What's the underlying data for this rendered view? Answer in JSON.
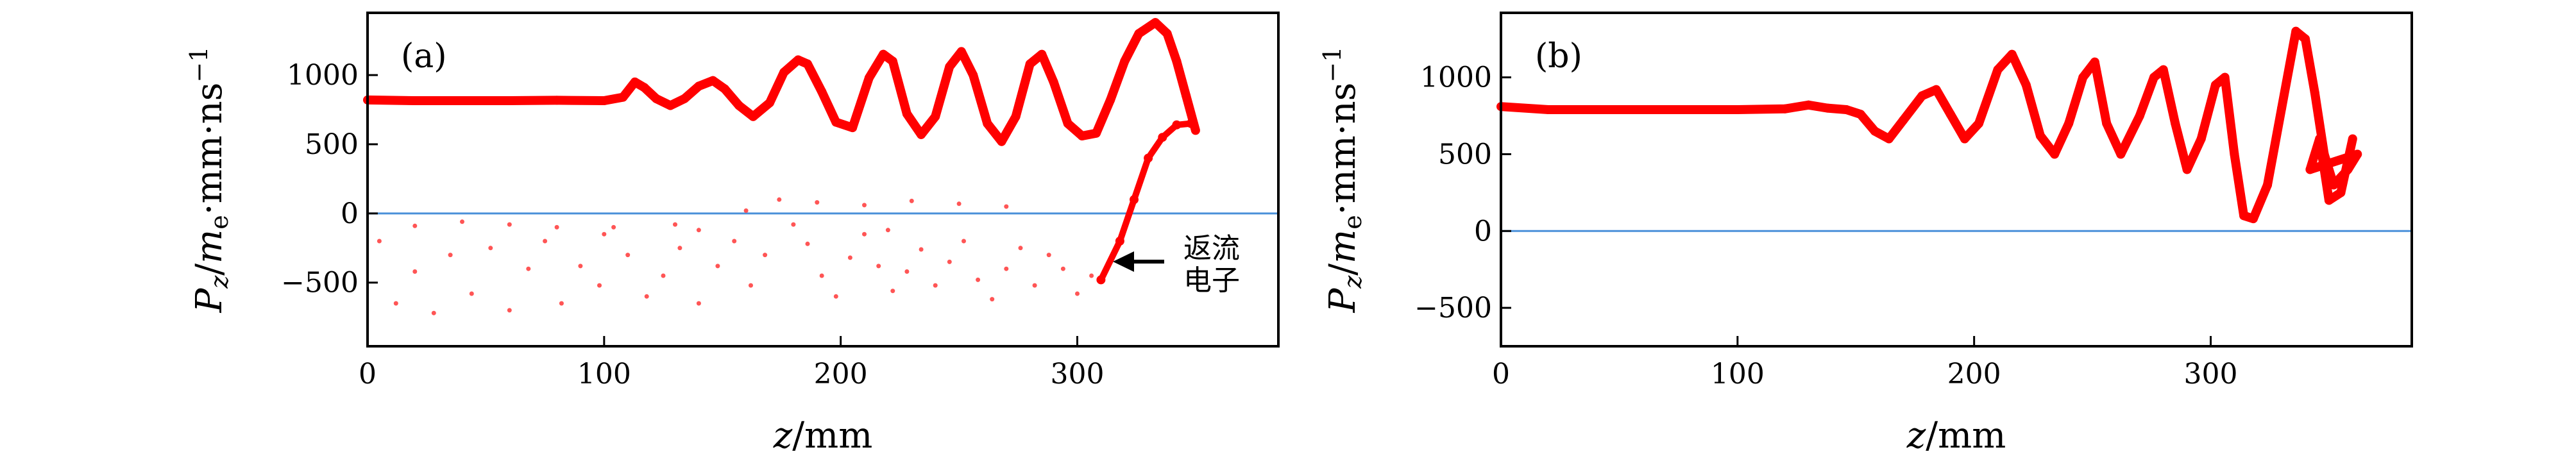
{
  "chart_data": [
    {
      "panel_label": "(a)",
      "type": "scatter",
      "xlabel": "z/mm",
      "ylabel": "P_z/m_e·mm·ns^-1",
      "xlim": [
        0,
        385
      ],
      "ylim": [
        -960,
        1450
      ],
      "xticks": [
        0,
        100,
        200,
        300
      ],
      "yticks": [
        -500,
        0,
        500,
        1000
      ],
      "ytick_labels": [
        "−500",
        "0",
        "500",
        "1000"
      ],
      "grid": false,
      "reference_line": {
        "y": 0,
        "color": "#4a90d9"
      },
      "series": [
        {
          "color": "#ff0000",
          "points": [
            [
              0,
              820
            ],
            [
              20,
              815
            ],
            [
              40,
              815
            ],
            [
              60,
              815
            ],
            [
              80,
              818
            ],
            [
              100,
              815
            ],
            [
              108,
              840
            ],
            [
              113,
              950
            ],
            [
              117,
              910
            ],
            [
              122,
              830
            ],
            [
              128,
              780
            ],
            [
              134,
              830
            ],
            [
              140,
              920
            ],
            [
              146,
              960
            ],
            [
              151,
              900
            ],
            [
              157,
              780
            ],
            [
              163,
              700
            ],
            [
              170,
              800
            ],
            [
              176,
              1020
            ],
            [
              182,
              1110
            ],
            [
              186,
              1080
            ],
            [
              192,
              880
            ],
            [
              198,
              660
            ],
            [
              205,
              620
            ],
            [
              212,
              980
            ],
            [
              218,
              1150
            ],
            [
              222,
              1100
            ],
            [
              228,
              720
            ],
            [
              234,
              570
            ],
            [
              240,
              700
            ],
            [
              246,
              1060
            ],
            [
              251,
              1170
            ],
            [
              256,
              1000
            ],
            [
              262,
              650
            ],
            [
              268,
              520
            ],
            [
              274,
              700
            ],
            [
              280,
              1080
            ],
            [
              285,
              1150
            ],
            [
              290,
              950
            ],
            [
              296,
              650
            ],
            [
              302,
              560
            ],
            [
              308,
              580
            ],
            [
              314,
              820
            ],
            [
              320,
              1100
            ],
            [
              326,
              1300
            ],
            [
              333,
              1380
            ],
            [
              338,
              1300
            ],
            [
              342,
              1100
            ],
            [
              346,
              850
            ],
            [
              350,
              600
            ],
            [
              310,
              -480
            ],
            [
              318,
              -200
            ],
            [
              324,
              100
            ],
            [
              330,
              400
            ],
            [
              336,
              550
            ],
            [
              342,
              640
            ],
            [
              348,
              650
            ]
          ]
        },
        {
          "color": "#ff5555",
          "points": [
            [
              5,
              -200
            ],
            [
              12,
              -650
            ],
            [
              20,
              -420
            ],
            [
              28,
              -720
            ],
            [
              35,
              -300
            ],
            [
              44,
              -580
            ],
            [
              52,
              -250
            ],
            [
              60,
              -700
            ],
            [
              68,
              -400
            ],
            [
              75,
              -200
            ],
            [
              82,
              -650
            ],
            [
              90,
              -380
            ],
            [
              98,
              -520
            ],
            [
              104,
              -100
            ],
            [
              110,
              -300
            ],
            [
              118,
              -600
            ],
            [
              125,
              -450
            ],
            [
              132,
              -250
            ],
            [
              140,
              -650
            ],
            [
              148,
              -380
            ],
            [
              155,
              -200
            ],
            [
              162,
              -520
            ],
            [
              168,
              -300
            ],
            [
              174,
              100
            ],
            [
              180,
              -80
            ],
            [
              186,
              -220
            ],
            [
              192,
              -450
            ],
            [
              198,
              -600
            ],
            [
              204,
              -320
            ],
            [
              210,
              -150
            ],
            [
              216,
              -380
            ],
            [
              222,
              -560
            ],
            [
              228,
              -420
            ],
            [
              234,
              -260
            ],
            [
              240,
              -520
            ],
            [
              246,
              -350
            ],
            [
              252,
              -200
            ],
            [
              258,
              -480
            ],
            [
              264,
              -620
            ],
            [
              270,
              -400
            ],
            [
              276,
              -250
            ],
            [
              282,
              -520
            ],
            [
              288,
              -300
            ],
            [
              294,
              -400
            ],
            [
              300,
              -580
            ],
            [
              306,
              -450
            ],
            [
              190,
              80
            ],
            [
              210,
              60
            ],
            [
              230,
              90
            ],
            [
              250,
              70
            ],
            [
              270,
              50
            ],
            [
              160,
              20
            ],
            [
              130,
              -80
            ],
            [
              100,
              -150
            ],
            [
              80,
              -100
            ],
            [
              60,
              -80
            ],
            [
              40,
              -60
            ],
            [
              20,
              -90
            ],
            [
              140,
              -120
            ],
            [
              220,
              -120
            ]
          ]
        }
      ],
      "annotation": {
        "text_lines": [
          "返流",
          "电子"
        ],
        "arrow_to": [
          318,
          -350
        ]
      }
    },
    {
      "panel_label": "(b)",
      "type": "scatter",
      "xlabel": "z/mm",
      "ylabel": "P_z/m_e·mm·ns^-1",
      "xlim": [
        0,
        385
      ],
      "ylim": [
        -750,
        1420
      ],
      "xticks": [
        0,
        100,
        200,
        300
      ],
      "yticks": [
        -500,
        0,
        500,
        1000
      ],
      "ytick_labels": [
        "−500",
        "0",
        "500",
        "1000"
      ],
      "grid": false,
      "reference_line": {
        "y": 0,
        "color": "#4a90d9"
      },
      "series": [
        {
          "color": "#ff0000",
          "points": [
            [
              0,
              810
            ],
            [
              20,
              790
            ],
            [
              40,
              790
            ],
            [
              60,
              790
            ],
            [
              80,
              790
            ],
            [
              100,
              790
            ],
            [
              120,
              795
            ],
            [
              130,
              820
            ],
            [
              138,
              800
            ],
            [
              146,
              790
            ],
            [
              152,
              760
            ],
            [
              158,
              650
            ],
            [
              164,
              600
            ],
            [
              170,
              720
            ],
            [
              178,
              880
            ],
            [
              184,
              920
            ],
            [
              190,
              760
            ],
            [
              196,
              600
            ],
            [
              202,
              700
            ],
            [
              210,
              1050
            ],
            [
              216,
              1150
            ],
            [
              222,
              950
            ],
            [
              228,
              620
            ],
            [
              234,
              500
            ],
            [
              240,
              700
            ],
            [
              246,
              1000
            ],
            [
              251,
              1100
            ],
            [
              256,
              700
            ],
            [
              262,
              500
            ],
            [
              270,
              750
            ],
            [
              276,
              1000
            ],
            [
              280,
              1050
            ],
            [
              285,
              700
            ],
            [
              290,
              400
            ],
            [
              296,
              600
            ],
            [
              302,
              950
            ],
            [
              306,
              1000
            ],
            [
              310,
              500
            ],
            [
              314,
              100
            ],
            [
              318,
              80
            ],
            [
              324,
              300
            ],
            [
              330,
              800
            ],
            [
              336,
              1300
            ],
            [
              340,
              1250
            ],
            [
              344,
              900
            ],
            [
              348,
              500
            ],
            [
              352,
              300
            ],
            [
              358,
              400
            ],
            [
              362,
              500
            ],
            [
              342,
              400
            ],
            [
              346,
              600
            ],
            [
              350,
              200
            ],
            [
              355,
              250
            ],
            [
              360,
              600
            ]
          ]
        }
      ]
    }
  ]
}
